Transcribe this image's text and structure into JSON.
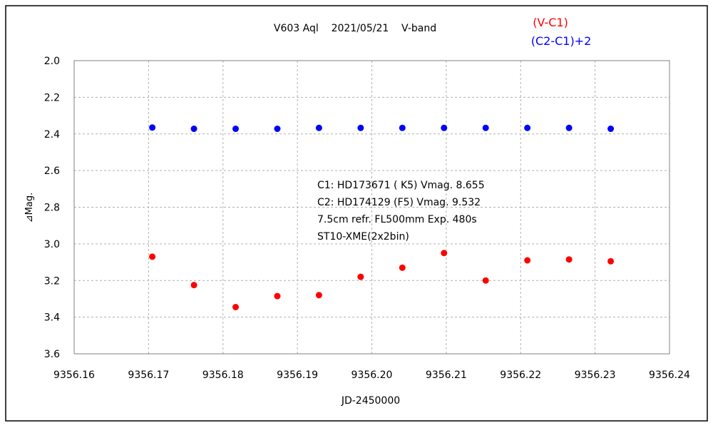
{
  "chart_data": {
    "type": "scatter",
    "title": "V603 Aql    2021/05/21    V-band",
    "xlabel": "JD-2450000",
    "ylabel": "⊿Mag.",
    "xlim": [
      9356.16,
      9356.24
    ],
    "ylim": [
      2.0,
      3.6
    ],
    "y_inverted": true,
    "grid": true,
    "x_ticks": [
      "9356.16",
      "9356.17",
      "9356.18",
      "9356.19",
      "9356.20",
      "9356.21",
      "9356.22",
      "9356.23",
      "9356.24"
    ],
    "y_ticks": [
      "2.0",
      "2.2",
      "2.4",
      "2.6",
      "2.8",
      "3.0",
      "3.2",
      "3.4",
      "3.6"
    ],
    "legend_position": "top-right",
    "annotation_lines": [
      "C1: HD173671 ( K5) Vmag. 8.655",
      "C2: HD174129 (F5) Vmag. 9.532",
      "7.5cm refr. FL500mm Exp. 480s",
      "ST10-XME(2x2bin)"
    ],
    "series": [
      {
        "name": "(V-C1)",
        "color": "#ff0000",
        "x": [
          9356.1705,
          9356.1761,
          9356.1817,
          9356.1873,
          9356.1929,
          9356.1985,
          9356.2041,
          9356.2097,
          9356.2153,
          9356.2209,
          9356.2265,
          9356.2321
        ],
        "y": [
          3.07,
          3.225,
          3.345,
          3.285,
          3.28,
          3.18,
          3.13,
          3.05,
          3.2,
          3.09,
          3.085,
          3.095
        ]
      },
      {
        "name": "(C2-C1)+2",
        "color": "#0000ff",
        "x": [
          9356.1705,
          9356.1761,
          9356.1817,
          9356.1873,
          9356.1929,
          9356.1985,
          9356.2041,
          9356.2097,
          9356.2153,
          9356.2209,
          9356.2265,
          9356.2321
        ],
        "y": [
          2.365,
          2.372,
          2.372,
          2.372,
          2.367,
          2.367,
          2.367,
          2.367,
          2.367,
          2.367,
          2.367,
          2.372
        ]
      }
    ]
  }
}
